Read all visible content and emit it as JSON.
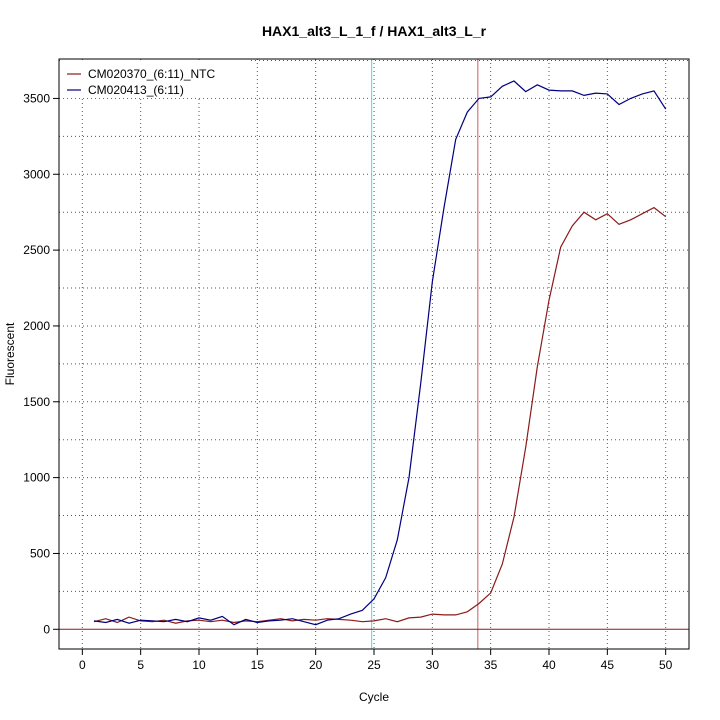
{
  "chart_data": {
    "type": "line",
    "title": "HAX1_alt3_L_1_f / HAX1_alt3_L_r",
    "xlabel": "Cycle",
    "ylabel": "Fluorescent",
    "xlim": [
      -2,
      52
    ],
    "ylim": [
      -130,
      3760
    ],
    "x_ticks": [
      0,
      5,
      10,
      15,
      20,
      25,
      30,
      35,
      40,
      45,
      50
    ],
    "y_ticks": [
      0,
      500,
      1000,
      1500,
      2000,
      2500,
      3000,
      3500
    ],
    "grid": true,
    "legend_position": "top-left",
    "threshold": {
      "value": 0,
      "color": "#8b1a1a"
    },
    "cycle_markers": [
      {
        "x": 24.8,
        "color": "#40e0e0"
      },
      {
        "x": 33.9,
        "color": "#cd5c5c"
      }
    ],
    "series": [
      {
        "name": "CM020370_(6:11)_NTC",
        "color": "#8b1a1a",
        "x": [
          1,
          2,
          3,
          4,
          5,
          6,
          7,
          8,
          9,
          10,
          11,
          12,
          13,
          14,
          15,
          16,
          17,
          18,
          19,
          20,
          21,
          22,
          23,
          24,
          25,
          26,
          27,
          28,
          29,
          30,
          31,
          32,
          33,
          34,
          35,
          36,
          37,
          38,
          39,
          40,
          41,
          42,
          43,
          44,
          45,
          46,
          47,
          48,
          49,
          50
        ],
        "values": [
          50,
          70,
          45,
          80,
          55,
          50,
          60,
          40,
          55,
          60,
          50,
          60,
          45,
          55,
          50,
          60,
          70,
          55,
          65,
          60,
          70,
          65,
          60,
          50,
          55,
          70,
          50,
          75,
          80,
          100,
          95,
          95,
          115,
          170,
          240,
          430,
          740,
          1200,
          1730,
          2170,
          2520,
          2660,
          2750,
          2700,
          2740,
          2670,
          2700,
          2740,
          2780,
          2720
        ]
      },
      {
        "name": "CM020413_(6:11)",
        "color": "#000080",
        "x": [
          1,
          2,
          3,
          4,
          5,
          6,
          7,
          8,
          9,
          10,
          11,
          12,
          13,
          14,
          15,
          16,
          17,
          18,
          19,
          20,
          21,
          22,
          23,
          24,
          25,
          26,
          27,
          28,
          29,
          30,
          31,
          32,
          33,
          34,
          35,
          36,
          37,
          38,
          39,
          40,
          41,
          42,
          43,
          44,
          45,
          46,
          47,
          48,
          49,
          50
        ],
        "values": [
          55,
          45,
          65,
          40,
          60,
          55,
          50,
          65,
          50,
          75,
          60,
          85,
          30,
          65,
          45,
          55,
          60,
          70,
          50,
          30,
          60,
          70,
          100,
          125,
          200,
          340,
          590,
          1000,
          1620,
          2290,
          2780,
          3230,
          3410,
          3500,
          3510,
          3580,
          3615,
          3545,
          3590,
          3555,
          3550,
          3550,
          3520,
          3535,
          3530,
          3460,
          3500,
          3530,
          3550,
          3430
        ]
      }
    ]
  }
}
